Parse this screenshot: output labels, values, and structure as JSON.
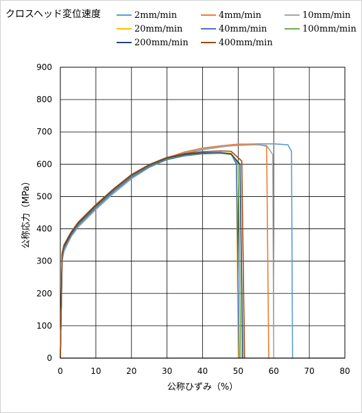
{
  "chart_data": {
    "type": "line",
    "title": "",
    "legend_title": "クロスヘッド変位速度",
    "xlabel": "公称ひずみ（%）",
    "ylabel": "公称応力（MPa）",
    "xlim": [
      0,
      80
    ],
    "ylim": [
      0,
      900
    ],
    "x_ticks": [
      "0",
      "10",
      "20",
      "30",
      "40",
      "50",
      "60",
      "70",
      "80"
    ],
    "y_ticks": [
      "0",
      "100",
      "200",
      "300",
      "400",
      "500",
      "600",
      "700",
      "800",
      "900"
    ],
    "grid": true,
    "legend_placement": "top",
    "series": [
      {
        "name": "2mm/min",
        "color": "#5b9bd5",
        "x": [
          0,
          0.5,
          1,
          3,
          5,
          10,
          15,
          20,
          25,
          30,
          35,
          40,
          45,
          50,
          55,
          60,
          64,
          65,
          65.3
        ],
        "y": [
          0,
          300,
          330,
          375,
          405,
          460,
          510,
          555,
          590,
          615,
          633,
          645,
          653,
          660,
          663,
          663,
          660,
          640,
          0
        ]
      },
      {
        "name": "4mm/min",
        "color": "#ed7d31",
        "x": [
          0,
          0.5,
          1,
          3,
          5,
          10,
          15,
          20,
          25,
          30,
          35,
          40,
          45,
          50,
          55,
          58,
          58.6
        ],
        "y": [
          0,
          310,
          335,
          378,
          410,
          465,
          515,
          560,
          594,
          620,
          638,
          650,
          657,
          662,
          662,
          655,
          0
        ]
      },
      {
        "name": "10mm/min",
        "color": "#a5a5a5",
        "x": [
          0,
          0.5,
          1,
          3,
          5,
          10,
          15,
          20,
          25,
          30,
          35,
          40,
          45,
          50,
          55,
          58,
          59.7,
          60
        ],
        "y": [
          0,
          305,
          332,
          376,
          407,
          462,
          512,
          557,
          591,
          617,
          635,
          647,
          654,
          658,
          660,
          658,
          630,
          0
        ]
      },
      {
        "name": "20mm/min",
        "color": "#ffc000",
        "x": [
          0,
          0.5,
          1,
          3,
          5,
          10,
          15,
          20,
          25,
          30,
          35,
          40,
          45,
          48,
          49.5,
          50
        ],
        "y": [
          0,
          315,
          340,
          382,
          413,
          468,
          518,
          562,
          594,
          616,
          628,
          634,
          636,
          634,
          610,
          0
        ]
      },
      {
        "name": "40mm/min",
        "color": "#4472c4",
        "x": [
          0,
          0.5,
          1,
          3,
          5,
          10,
          15,
          20,
          25,
          30,
          35,
          40,
          45,
          48,
          49.5,
          50.3
        ],
        "y": [
          0,
          312,
          338,
          380,
          411,
          466,
          516,
          560,
          592,
          614,
          626,
          632,
          634,
          632,
          600,
          0
        ]
      },
      {
        "name": "100mm/min",
        "color": "#70ad47",
        "x": [
          0,
          0.5,
          1,
          3,
          5,
          10,
          15,
          20,
          25,
          30,
          35,
          40,
          45,
          48,
          50,
          50.8
        ],
        "y": [
          0,
          318,
          342,
          384,
          415,
          470,
          520,
          564,
          595,
          617,
          628,
          633,
          634,
          630,
          600,
          0
        ]
      },
      {
        "name": "200mm/min",
        "color": "#264478",
        "x": [
          0,
          0.5,
          1,
          3,
          5,
          10,
          15,
          20,
          25,
          30,
          35,
          40,
          45,
          48,
          50.5,
          51.3
        ],
        "y": [
          0,
          320,
          345,
          386,
          417,
          472,
          522,
          566,
          597,
          619,
          630,
          635,
          636,
          632,
          600,
          0
        ]
      },
      {
        "name": "400mm/min",
        "color": "#9e480e",
        "x": [
          0,
          0.5,
          1,
          3,
          5,
          10,
          15,
          20,
          25,
          30,
          35,
          40,
          45,
          48,
          51,
          51.8
        ],
        "y": [
          0,
          325,
          350,
          390,
          420,
          475,
          524,
          568,
          599,
          621,
          633,
          639,
          641,
          640,
          610,
          0
        ]
      }
    ]
  }
}
